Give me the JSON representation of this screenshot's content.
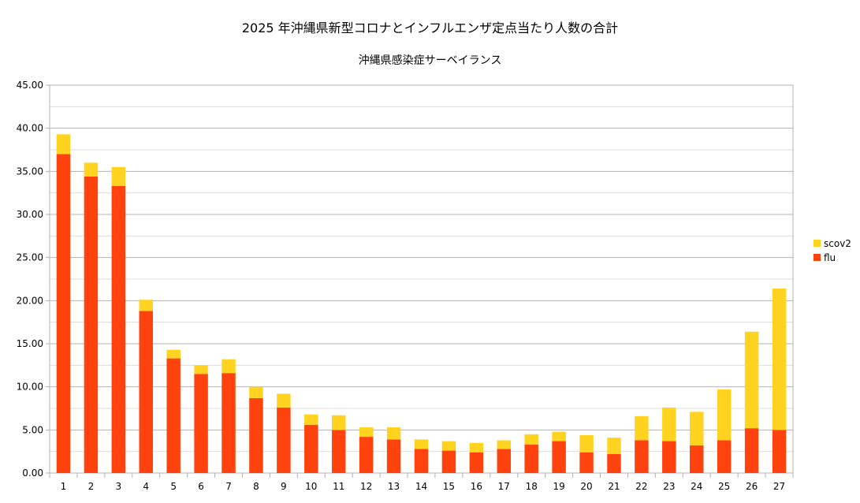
{
  "chart_data": {
    "type": "bar",
    "stacked": true,
    "title": "2025 年沖縄県新型コロナとインフルエンザ定点当たり人数の合計",
    "subtitle": "沖縄県感染症サーベイランス",
    "xlabel": "",
    "ylabel": "",
    "ylim": [
      0,
      45
    ],
    "y_tick_labels": [
      "0.00",
      "5.00",
      "10.00",
      "15.00",
      "20.00",
      "25.00",
      "30.00",
      "35.00",
      "40.00",
      "45.00"
    ],
    "grid": true,
    "legend_position": "right",
    "categories": [
      "1",
      "2",
      "3",
      "4",
      "5",
      "6",
      "7",
      "8",
      "9",
      "10",
      "11",
      "12",
      "13",
      "14",
      "15",
      "16",
      "17",
      "18",
      "19",
      "20",
      "21",
      "22",
      "23",
      "24",
      "25",
      "26",
      "27"
    ],
    "series": [
      {
        "name": "flu",
        "color": "#ff420e",
        "values": [
          37.0,
          34.4,
          33.3,
          18.8,
          13.3,
          11.5,
          11.6,
          8.7,
          7.6,
          5.6,
          5.0,
          4.2,
          3.9,
          2.8,
          2.6,
          2.4,
          2.8,
          3.3,
          3.7,
          2.4,
          2.2,
          3.8,
          3.7,
          3.2,
          3.8,
          5.2,
          5.0
        ]
      },
      {
        "name": "scov2",
        "color": "#ffd320",
        "values": [
          2.3,
          1.6,
          2.2,
          1.3,
          1.0,
          1.0,
          1.6,
          1.3,
          1.6,
          1.2,
          1.7,
          1.1,
          1.4,
          1.1,
          1.1,
          1.1,
          1.0,
          1.2,
          1.1,
          2.0,
          1.9,
          2.8,
          3.9,
          3.9,
          5.9,
          11.2,
          16.4
        ]
      }
    ]
  }
}
